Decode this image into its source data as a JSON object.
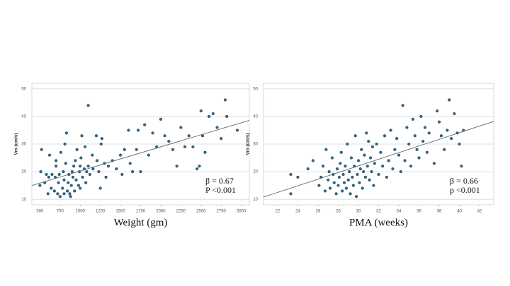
{
  "chart_data": [
    {
      "type": "scatter",
      "x_label": "Weight (gm)",
      "y_label": "Vm (cm/s)",
      "annotations": [
        "β = 0.67",
        "P <0.001"
      ],
      "xlim": [
        400,
        3100
      ],
      "ylim": [
        8,
        52
      ],
      "xticks": [
        500,
        750,
        1000,
        1250,
        1500,
        1750,
        2000,
        2250,
        2500,
        2750,
        3000
      ],
      "yticks": [
        10,
        20,
        30,
        40,
        50
      ],
      "grid": true,
      "color": "#2b6a8c",
      "trend": {
        "x": [
          400,
          3100
        ],
        "values": [
          15,
          38.6
        ],
        "color": "#666666"
      },
      "x": [
        500,
        510,
        520,
        560,
        580,
        600,
        610,
        620,
        640,
        650,
        680,
        690,
        700,
        700,
        720,
        730,
        740,
        750,
        760,
        780,
        790,
        800,
        800,
        810,
        820,
        830,
        840,
        850,
        860,
        870,
        880,
        890,
        900,
        910,
        920,
        930,
        940,
        950,
        960,
        980,
        990,
        1000,
        1000,
        1010,
        1020,
        1030,
        1050,
        1060,
        1070,
        1080,
        1100,
        1100,
        1120,
        1150,
        1160,
        1200,
        1210,
        1230,
        1250,
        1260,
        1270,
        1300,
        1320,
        1350,
        1400,
        1450,
        1500,
        1520,
        1550,
        1600,
        1620,
        1650,
        1700,
        1720,
        1750,
        1800,
        1850,
        1900,
        1950,
        2000,
        2050,
        2100,
        2150,
        2200,
        2250,
        2300,
        2350,
        2400,
        2450,
        2480,
        2500,
        2520,
        2550,
        2600,
        2650,
        2700,
        2750,
        2800,
        2820,
        2950
      ],
      "values": [
        15,
        20,
        28,
        16,
        19,
        12,
        18,
        26,
        14,
        19,
        13,
        18,
        22,
        24,
        12,
        16,
        19,
        11,
        27,
        14,
        20,
        12,
        17,
        30,
        23,
        34,
        13,
        16,
        19,
        12,
        11,
        15,
        20,
        18,
        22,
        13,
        24,
        17,
        28,
        15,
        20,
        14,
        22,
        25,
        33,
        18,
        21,
        29,
        16,
        20,
        44,
        22,
        19,
        26,
        21,
        33,
        24,
        20,
        14,
        30,
        32,
        23,
        18,
        22,
        24,
        21,
        26,
        19,
        28,
        35,
        23,
        20,
        28,
        35,
        20,
        37,
        26,
        34,
        29,
        39,
        33,
        31,
        28,
        22,
        36,
        29,
        33,
        29,
        21,
        22,
        42,
        33,
        27,
        40,
        41,
        36,
        32,
        46,
        40,
        35
      ]
    },
    {
      "type": "scatter",
      "x_label": "PMA (weeks)",
      "y_label": "Vm (cm/s)",
      "annotations": [
        "β = 0.66",
        "p <0.001"
      ],
      "xlim": [
        20.6,
        43.4
      ],
      "ylim": [
        8,
        52
      ],
      "xticks": [
        22,
        24,
        26,
        28,
        30,
        32,
        34,
        36,
        38,
        40,
        42
      ],
      "yticks": [
        10,
        20,
        30,
        40,
        50
      ],
      "grid": true,
      "color": "#2b6a8c",
      "trend": {
        "x": [
          20.6,
          43.4
        ],
        "values": [
          10.8,
          38.2
        ],
        "color": "#666666"
      },
      "x": [
        23.3,
        23.3,
        24,
        25,
        25.5,
        26.1,
        26.3,
        26.5,
        26.7,
        26.8,
        27,
        27.1,
        27.2,
        27.4,
        27.5,
        27.6,
        27.8,
        27.9,
        28,
        28.1,
        28.2,
        28.3,
        28.4,
        28.5,
        28.6,
        28.7,
        28.8,
        28.9,
        29,
        29.1,
        29.2,
        29.3,
        29.4,
        29.5,
        29.6,
        29.7,
        29.8,
        29.9,
        30,
        30.1,
        30.2,
        30.3,
        30.4,
        30.5,
        30.6,
        30.7,
        30.8,
        30.9,
        31,
        31.1,
        31.2,
        31.3,
        31.4,
        31.5,
        31.6,
        31.8,
        32,
        32.2,
        32.4,
        32.6,
        32.8,
        33,
        33.2,
        33.4,
        33.6,
        33.8,
        34,
        34.2,
        34.4,
        34.6,
        34.8,
        35,
        35.2,
        35.4,
        35.6,
        35.8,
        36,
        36.2,
        36.4,
        36.6,
        36.8,
        37,
        37.5,
        37.8,
        38,
        38.2,
        38.5,
        38.8,
        39,
        39.2,
        39.5,
        39.8,
        40,
        40.2,
        40.4
      ],
      "values": [
        12,
        19,
        18,
        21,
        24,
        15,
        18,
        22,
        13,
        28,
        17,
        20,
        14,
        25,
        19,
        16,
        12,
        21,
        15,
        18,
        23,
        27,
        13,
        19,
        16,
        22,
        14,
        30,
        17,
        20,
        12,
        25,
        18,
        15,
        22,
        33,
        11,
        19,
        24,
        16,
        21,
        28,
        14,
        20,
        26,
        18,
        34,
        22,
        31,
        17,
        25,
        20,
        29,
        15,
        23,
        30,
        19,
        27,
        22,
        33,
        18,
        24,
        35,
        21,
        28,
        32,
        26,
        20,
        44,
        24,
        36,
        30,
        22,
        39,
        33,
        28,
        25,
        40,
        31,
        36,
        27,
        34,
        23,
        42,
        38,
        33,
        28,
        35,
        46,
        32,
        41,
        34,
        30,
        22,
        35
      ]
    }
  ]
}
